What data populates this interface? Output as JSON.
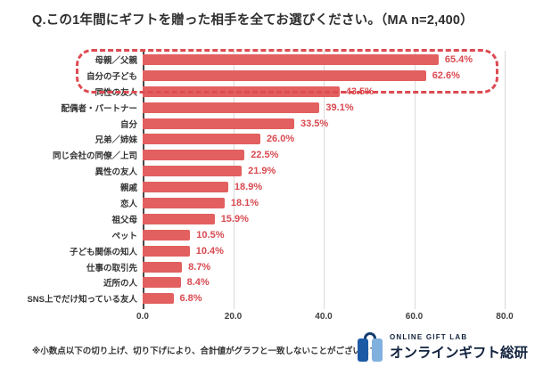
{
  "title": "Q.この1年間にギフトを贈った相手を全てお選びください。（MA n=2,400）",
  "footnote": "※小数点以下の切り上げ、切り下げにより、合計値がグラフと一致しないことがございます。",
  "logo": {
    "lab_text": "ONLINE GIFT LAB",
    "org_text": "オンラインギフト総研",
    "icon": "gift-bag-icon"
  },
  "colors": {
    "bar": "#e2605f",
    "value_text": "#d94a50",
    "highlight_border": "#dd4b52",
    "axis_line": "#4a4a4a",
    "gridline": "#d9d9d9",
    "label_text": "#333333",
    "logo_dark_blue": "#1c5aa5",
    "logo_light_blue": "#7fb0de",
    "logo_navy": "#123c6e",
    "logo_text": "#12233f"
  },
  "chart_data": {
    "type": "bar",
    "orientation": "horizontal",
    "title": "Q.この1年間にギフトを贈った相手を全てお選びください。（MA n=2,400）",
    "categories": [
      "母親／父親",
      "自分の子ども",
      "同性の友人",
      "配偶者・パートナー",
      "自分",
      "兄弟／姉妹",
      "同じ会社の同僚／上司",
      "異性の友人",
      "親戚",
      "恋人",
      "祖父母",
      "ペット",
      "子ども関係の知人",
      "仕事の取引先",
      "近所の人",
      "SNS上でだけ知っている友人"
    ],
    "values": [
      65.4,
      62.6,
      43.5,
      39.1,
      33.5,
      26.0,
      22.5,
      21.9,
      18.9,
      18.1,
      15.9,
      10.5,
      10.4,
      8.7,
      8.4,
      6.8
    ],
    "value_labels": [
      "65.4%",
      "62.6%",
      "43.5%",
      "39.1%",
      "33.5%",
      "26.0%",
      "22.5%",
      "21.9%",
      "18.9%",
      "18.1%",
      "15.9%",
      "10.5%",
      "10.4%",
      "8.7%",
      "8.4%",
      "6.8%"
    ],
    "xlabel": "",
    "ylabel": "",
    "xlim": [
      0,
      80
    ],
    "xticks": [
      "0.0",
      "20.0",
      "40.0",
      "60.0",
      "80.0"
    ],
    "grid": true,
    "legend": false,
    "highlight": {
      "style": "red-dashed-rounded-box",
      "categories": [
        "母親／父親",
        "自分の子ども"
      ]
    }
  }
}
